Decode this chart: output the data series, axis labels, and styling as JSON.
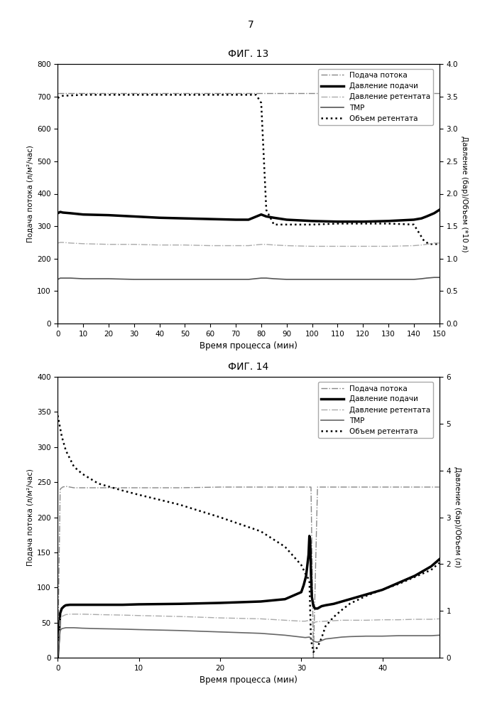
{
  "fig13": {
    "title": "ФИГ. 13",
    "xlabel": "Время процесса (мин)",
    "ylabel_left": "Подача потока (л/м²/час)",
    "ylabel_right": "Давление (бар)/Объем (*10 л)",
    "xlim": [
      0,
      150
    ],
    "ylim_left": [
      0,
      800
    ],
    "ylim_right": [
      0,
      4.0
    ],
    "xticks": [
      0,
      10,
      20,
      30,
      40,
      50,
      60,
      70,
      80,
      90,
      100,
      110,
      120,
      130,
      140,
      150
    ],
    "yticks_left": [
      0,
      100,
      200,
      300,
      400,
      500,
      600,
      700,
      800
    ],
    "yticks_right": [
      0.0,
      0.5,
      1.0,
      1.5,
      2.0,
      2.5,
      3.0,
      3.5,
      4.0
    ],
    "series": {
      "podacha_potoka": {
        "label": "Подача потока",
        "style": "dashdot",
        "color": "#888888",
        "linewidth": 1.0,
        "axis": "left",
        "x": [
          0,
          150
        ],
        "y": [
          710,
          710
        ]
      },
      "davlenie_podachi": {
        "label": "Давление подачи",
        "style": "solid",
        "color": "#000000",
        "linewidth": 2.5,
        "axis": "right",
        "x": [
          0,
          1,
          2,
          5,
          10,
          20,
          30,
          40,
          50,
          60,
          70,
          75,
          80,
          82,
          85,
          90,
          100,
          110,
          120,
          130,
          140,
          143,
          145,
          148,
          150
        ],
        "y": [
          1.7,
          1.72,
          1.71,
          1.7,
          1.68,
          1.67,
          1.65,
          1.63,
          1.62,
          1.61,
          1.6,
          1.6,
          1.68,
          1.65,
          1.63,
          1.6,
          1.58,
          1.57,
          1.57,
          1.58,
          1.6,
          1.62,
          1.65,
          1.7,
          1.75
        ]
      },
      "davlenie_retentata": {
        "label": "Давление ретентата",
        "style": "dashdot",
        "color": "#aaaaaa",
        "linewidth": 1.0,
        "axis": "right",
        "x": [
          0,
          1,
          2,
          5,
          10,
          20,
          30,
          40,
          50,
          60,
          70,
          75,
          80,
          82,
          85,
          90,
          100,
          110,
          120,
          130,
          140,
          143,
          145,
          148,
          150
        ],
        "y": [
          1.24,
          1.25,
          1.25,
          1.24,
          1.23,
          1.22,
          1.22,
          1.21,
          1.21,
          1.2,
          1.2,
          1.2,
          1.22,
          1.22,
          1.21,
          1.2,
          1.19,
          1.19,
          1.19,
          1.19,
          1.2,
          1.21,
          1.22,
          1.24,
          1.24
        ]
      },
      "tmp": {
        "label": "ТМР",
        "style": "solid",
        "color": "#555555",
        "linewidth": 1.2,
        "axis": "right",
        "x": [
          0,
          1,
          2,
          5,
          10,
          20,
          30,
          40,
          50,
          60,
          70,
          75,
          80,
          82,
          85,
          90,
          100,
          110,
          120,
          130,
          140,
          143,
          145,
          148,
          150
        ],
        "y": [
          0.68,
          0.7,
          0.7,
          0.7,
          0.69,
          0.69,
          0.68,
          0.68,
          0.68,
          0.68,
          0.68,
          0.68,
          0.7,
          0.7,
          0.69,
          0.68,
          0.68,
          0.68,
          0.68,
          0.68,
          0.68,
          0.69,
          0.7,
          0.71,
          0.71
        ]
      },
      "objem_retentata": {
        "label": "Объем ретентата",
        "style": "dotted",
        "color": "#000000",
        "linewidth": 1.8,
        "axis": "left",
        "x": [
          0,
          1,
          2,
          5,
          10,
          70,
          75,
          78,
          80,
          82,
          85,
          90,
          100,
          110,
          120,
          130,
          140,
          144,
          146,
          150
        ],
        "y": [
          695,
          700,
          702,
          703,
          705,
          705,
          705,
          705,
          680,
          350,
          305,
          305,
          305,
          308,
          308,
          308,
          305,
          255,
          245,
          245
        ]
      }
    }
  },
  "fig14": {
    "title": "ФИГ. 14",
    "xlabel": "Время процесса (мин)",
    "ylabel_left": "Подача потока (л/м²/час)",
    "ylabel_right": "Давление (бар)/Объем (л)",
    "xlim": [
      0,
      47
    ],
    "ylim_left": [
      0,
      400
    ],
    "ylim_right": [
      0,
      6.0
    ],
    "xticks": [
      0,
      10,
      20,
      30,
      40
    ],
    "yticks_left": [
      0,
      50,
      100,
      150,
      200,
      250,
      300,
      350,
      400
    ],
    "yticks_right": [
      0.0,
      1.0,
      2.0,
      3.0,
      4.0,
      5.0,
      6.0
    ],
    "series": {
      "podacha_potoka": {
        "label": "Подача потока",
        "style": "dashdot",
        "color": "#888888",
        "linewidth": 1.0,
        "axis": "left",
        "x": [
          0,
          0.3,
          0.6,
          1.0,
          1.5,
          2,
          3,
          5,
          8,
          10,
          15,
          20,
          25,
          28,
          30,
          30.5,
          31,
          31.2,
          31.5,
          32,
          33,
          35,
          38,
          40,
          43,
          45,
          47
        ],
        "y": [
          0,
          240,
          243,
          244,
          243,
          242,
          242,
          242,
          242,
          242,
          242,
          243,
          243,
          243,
          243,
          243,
          243,
          243,
          0,
          243,
          243,
          243,
          243,
          243,
          243,
          243,
          243
        ]
      },
      "davlenie_podachi": {
        "label": "Давление подачи",
        "style": "solid",
        "color": "#000000",
        "linewidth": 2.5,
        "axis": "right",
        "x": [
          0,
          0.3,
          0.5,
          0.8,
          1,
          1.5,
          2,
          3,
          5,
          8,
          10,
          15,
          20,
          25,
          28,
          30,
          30.3,
          30.6,
          30.9,
          31.0,
          31.1,
          31.2,
          31.3,
          31.5,
          31.7,
          32,
          32.5,
          33,
          34,
          35,
          36,
          38,
          40,
          42,
          44,
          46,
          47
        ],
        "y": [
          0.0,
          0.95,
          1.05,
          1.1,
          1.12,
          1.13,
          1.13,
          1.13,
          1.13,
          1.13,
          1.14,
          1.15,
          1.17,
          1.2,
          1.25,
          1.4,
          1.55,
          1.75,
          2.2,
          2.6,
          2.5,
          1.8,
          1.3,
          1.1,
          1.05,
          1.05,
          1.1,
          1.12,
          1.15,
          1.2,
          1.25,
          1.35,
          1.45,
          1.6,
          1.75,
          1.95,
          2.1
        ]
      },
      "davlenie_retentata": {
        "label": "Давление ретентата",
        "style": "dashdot",
        "color": "#aaaaaa",
        "linewidth": 1.0,
        "axis": "right",
        "x": [
          0,
          0.3,
          0.5,
          1,
          1.5,
          2,
          3,
          5,
          8,
          10,
          15,
          20,
          25,
          28,
          30,
          30.5,
          31,
          31.2,
          31.5,
          32,
          33,
          35,
          38,
          40,
          42,
          44,
          46,
          47
        ],
        "y": [
          0.0,
          0.82,
          0.88,
          0.92,
          0.93,
          0.93,
          0.93,
          0.92,
          0.91,
          0.9,
          0.88,
          0.85,
          0.83,
          0.8,
          0.78,
          0.78,
          0.8,
          0.77,
          0.75,
          0.77,
          0.78,
          0.8,
          0.8,
          0.81,
          0.81,
          0.82,
          0.82,
          0.83
        ]
      },
      "tmp": {
        "label": "ТМР",
        "style": "solid",
        "color": "#666666",
        "linewidth": 1.2,
        "axis": "right",
        "x": [
          0,
          0.3,
          0.5,
          1,
          1.5,
          2,
          3,
          5,
          8,
          10,
          15,
          20,
          25,
          28,
          30,
          30.5,
          31,
          31.2,
          31.5,
          32,
          33,
          34,
          35,
          36,
          38,
          40,
          42,
          44,
          46,
          47
        ],
        "y": [
          0.0,
          0.58,
          0.62,
          0.64,
          0.64,
          0.64,
          0.63,
          0.62,
          0.61,
          0.6,
          0.58,
          0.55,
          0.52,
          0.48,
          0.44,
          0.43,
          0.44,
          0.42,
          0.35,
          0.33,
          0.4,
          0.42,
          0.44,
          0.45,
          0.46,
          0.46,
          0.47,
          0.47,
          0.47,
          0.48
        ]
      },
      "objem_retentata": {
        "label": "Объем ретентата",
        "style": "dotted",
        "color": "#000000",
        "linewidth": 1.8,
        "axis": "left",
        "x": [
          0,
          0.5,
          1,
          2,
          3,
          5,
          8,
          10,
          15,
          20,
          25,
          28,
          30,
          30.5,
          31,
          31.2,
          31.5,
          32,
          32.5,
          33,
          34,
          35,
          36,
          38,
          40,
          42,
          44,
          46,
          47
        ],
        "y": [
          345,
          315,
          295,
          272,
          262,
          248,
          238,
          232,
          218,
          200,
          180,
          158,
          132,
          120,
          110,
          25,
          8,
          15,
          28,
          45,
          58,
          68,
          77,
          88,
          97,
          105,
          115,
          125,
          135
        ]
      }
    }
  },
  "page_number": "7",
  "background_color": "#ffffff"
}
